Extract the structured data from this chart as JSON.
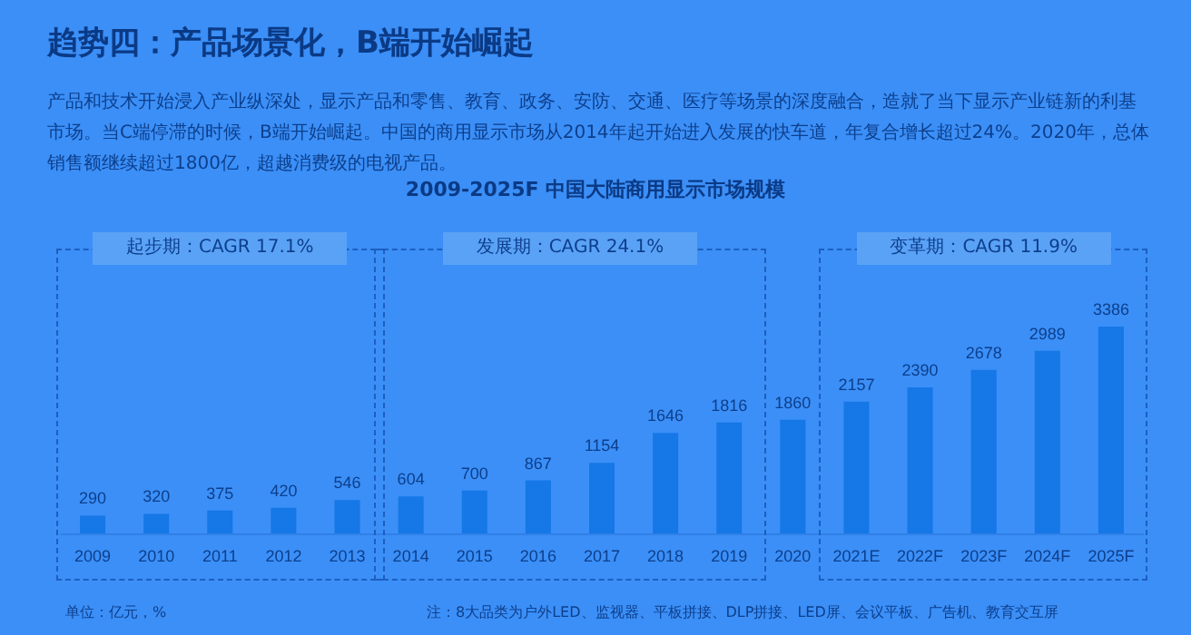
{
  "chart_data": {
    "type": "bar",
    "title": "趋势四：产品场景化，B端开始崛起",
    "subtitle": "产品和技术开始浸入产业纵深处，显示产品和零售、教育、政务、安防、交通、医疗等场景的深度融合，造就了当下显示产业链新的利基市场。当C端停滞的时候，B端开始崛起。中国的商用显示市场从2014年起开始进入发展的快车道，年复合增长超过24%。2020年，总体销售额继续超过1800亿，超越消费级的电视产品。",
    "categories": [
      "2009",
      "2010",
      "2011",
      "2012",
      "2013",
      "2014",
      "2015",
      "2016",
      "2017",
      "2018",
      "2019",
      "2020",
      "2021E",
      "2022F",
      "2023F",
      "2024F",
      "2025F"
    ],
    "values": [
      290,
      320,
      375,
      420,
      546,
      604,
      700,
      867,
      1154,
      1646,
      1816,
      1860,
      2157,
      2390,
      2678,
      2989,
      3386
    ],
    "color": "#1677e6",
    "data_labels": true,
    "annotations": [
      "2009-2025F 中国大陆商用显示市场规模",
      "起步期：CAGR 17.1%",
      "发展期：CAGR 24.1%",
      "变革期：CAGR 11.9%",
      "单位：亿元，%",
      "注：8大品类为户外LED、监视器、平板拼接、DLP拼接、LED屏、会议平板、广告机、教育交互屏"
    ]
  }
}
